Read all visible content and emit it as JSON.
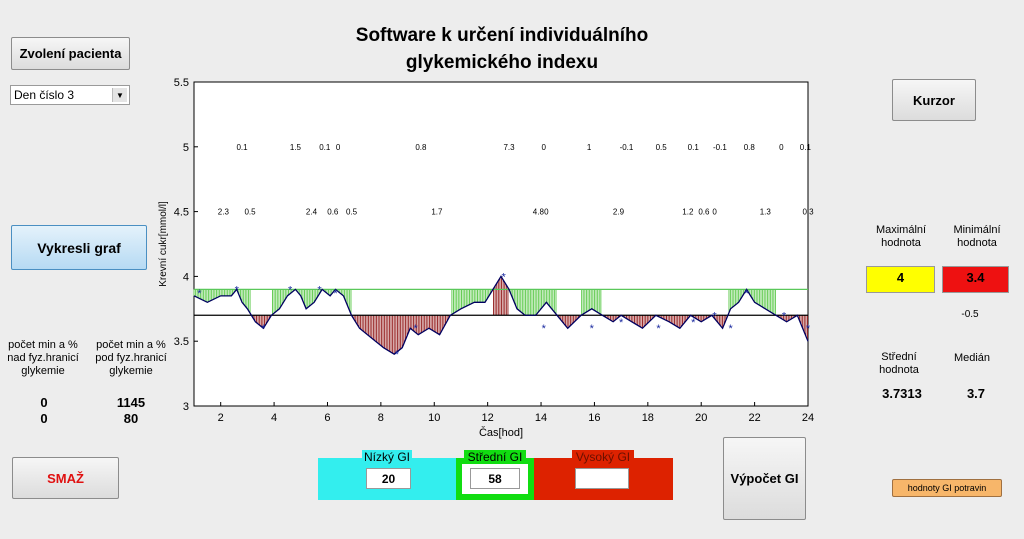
{
  "title_line1": "Software k určení individuálního",
  "title_line2": "glykemického indexu",
  "buttons": {
    "select_patient": "Zvolení pacienta",
    "draw_graph": "Vykresli graf",
    "delete": "SMAŽ",
    "cursor": "Kurzor",
    "compute_gi": "Výpočet GI",
    "gi_foods": "hodnoty GI potravin"
  },
  "day_select": {
    "value": "Den číslo 3"
  },
  "left_stats": {
    "above_label": [
      "počet min a %",
      "nad fyz.hranicí",
      "glykemie"
    ],
    "below_label": [
      "počet min a %",
      "pod fyz.hranicí",
      "glykemie"
    ],
    "above_minutes": "0",
    "above_percent": "0",
    "below_minutes": "1145",
    "below_percent": "80"
  },
  "right_stats": {
    "max_label": [
      "Maximální",
      "hodnota"
    ],
    "min_label": [
      "Minimální",
      "hodnota"
    ],
    "max_value": "4",
    "min_value": "3.4",
    "diff_value": "-0.5",
    "mean_label": [
      "Střední",
      "hodnota"
    ],
    "median_label": "Medián",
    "mean_value": "3.7313",
    "median_value": "3.7"
  },
  "gi_panel": {
    "low_label": "Nízký GI",
    "low_value": "20",
    "mid_label": "Střední GI",
    "mid_value": "58",
    "high_label": "Vysoký GI",
    "high_value": ""
  },
  "colors": {
    "max_box": "#ffff00",
    "min_box": "#ee1111",
    "low_bg": "#33eeee",
    "mid_bg": "#11dd11",
    "high_bg": "#dd2200",
    "upper_line": "#5ac85a",
    "lower_line": "#000000",
    "curve": "#000060",
    "fill_above": "#9a2a2a",
    "fill_below": "#66cc55",
    "marker": "#1a2aa0"
  },
  "chart_data": {
    "type": "line",
    "xlabel": "Čas[hod]",
    "ylabel": "Krevní cukr[mmol/l]",
    "xlim": [
      1,
      24
    ],
    "ylim": [
      3,
      5.5
    ],
    "xticks": [
      2,
      4,
      6,
      8,
      10,
      12,
      14,
      16,
      18,
      20,
      22,
      24
    ],
    "yticks": [
      3,
      3.5,
      4,
      4.5,
      5,
      5.5
    ],
    "upper_limit": 3.9,
    "lower_limit": 3.7,
    "series": [
      {
        "x": [
          1,
          1.5,
          2,
          2.4,
          2.6,
          2.8,
          3,
          3.3,
          3.6,
          3.9,
          4.2,
          4.5,
          4.8,
          5.0,
          5.2,
          5.5,
          5.8,
          6.1,
          6.3,
          6.6,
          6.9,
          7.2,
          7.5,
          7.8,
          8.1,
          8.5,
          8.8,
          9.1,
          9.4,
          9.8,
          10.2,
          10.6,
          11.0,
          11.5,
          11.9,
          12.2,
          12.5,
          12.8,
          13.1,
          13.4,
          13.8,
          14.2,
          14.6,
          15.0,
          15.5,
          15.9,
          16.3,
          16.7,
          17.0,
          17.4,
          17.8,
          18.3,
          18.8,
          19.2,
          19.6,
          20.0,
          20.4,
          20.8,
          21.1,
          21.4,
          21.7,
          22.0,
          22.4,
          22.8,
          23.2,
          23.6,
          24
        ],
        "y": [
          3.85,
          3.8,
          3.85,
          3.85,
          3.9,
          3.8,
          3.75,
          3.65,
          3.6,
          3.7,
          3.75,
          3.85,
          3.9,
          3.85,
          3.75,
          3.8,
          3.9,
          3.85,
          3.9,
          3.85,
          3.7,
          3.6,
          3.55,
          3.5,
          3.45,
          3.4,
          3.45,
          3.6,
          3.55,
          3.6,
          3.55,
          3.7,
          3.75,
          3.8,
          3.8,
          3.9,
          4.0,
          3.9,
          3.75,
          3.7,
          3.7,
          3.8,
          3.7,
          3.6,
          3.7,
          3.75,
          3.7,
          3.65,
          3.7,
          3.65,
          3.6,
          3.7,
          3.65,
          3.6,
          3.7,
          3.65,
          3.7,
          3.6,
          3.75,
          3.8,
          3.9,
          3.8,
          3.75,
          3.7,
          3.65,
          3.7,
          3.5
        ]
      }
    ],
    "markers": {
      "x": [
        1.2,
        2.6,
        3.6,
        4.6,
        5.7,
        6.3,
        8.6,
        9.3,
        12.6,
        14.1,
        15.9,
        17.0,
        18.4,
        19.7,
        20.5,
        21.1,
        21.7,
        23.1,
        24
      ],
      "y": [
        3.87,
        3.9,
        3.6,
        3.9,
        3.9,
        3.87,
        3.4,
        3.6,
        4.0,
        3.6,
        3.6,
        3.65,
        3.6,
        3.65,
        3.7,
        3.6,
        3.87,
        3.7,
        3.6
      ]
    },
    "annotations_row1": {
      "y": 5.0,
      "items": [
        {
          "x": 2.8,
          "t": "0.1"
        },
        {
          "x": 4.8,
          "t": "1.5"
        },
        {
          "x": 5.9,
          "t": "0.1"
        },
        {
          "x": 6.4,
          "t": "0"
        },
        {
          "x": 9.5,
          "t": "0.8"
        },
        {
          "x": 12.8,
          "t": "7.3"
        },
        {
          "x": 14.1,
          "t": "0"
        },
        {
          "x": 15.8,
          "t": "1"
        },
        {
          "x": 17.2,
          "t": "-0.1"
        },
        {
          "x": 18.5,
          "t": "0.5"
        },
        {
          "x": 19.7,
          "t": "0.1"
        },
        {
          "x": 20.7,
          "t": "-0.1"
        },
        {
          "x": 21.8,
          "t": "0.8"
        },
        {
          "x": 23.0,
          "t": "0"
        },
        {
          "x": 23.9,
          "t": "0.1"
        }
      ]
    },
    "annotations_row2": {
      "y": 4.5,
      "items": [
        {
          "x": 2.1,
          "t": "2.3"
        },
        {
          "x": 3.1,
          "t": "0.5"
        },
        {
          "x": 5.4,
          "t": "2.4"
        },
        {
          "x": 6.2,
          "t": "0.6"
        },
        {
          "x": 6.9,
          "t": "0.5"
        },
        {
          "x": 10.1,
          "t": "1.7"
        },
        {
          "x": 13.9,
          "t": "4.8"
        },
        {
          "x": 14.2,
          "t": "0"
        },
        {
          "x": 16.9,
          "t": "2.9"
        },
        {
          "x": 19.5,
          "t": "1.2"
        },
        {
          "x": 20.1,
          "t": "0.6"
        },
        {
          "x": 20.5,
          "t": "0"
        },
        {
          "x": 22.4,
          "t": "1.3"
        },
        {
          "x": 24.0,
          "t": "0.3"
        }
      ]
    }
  }
}
